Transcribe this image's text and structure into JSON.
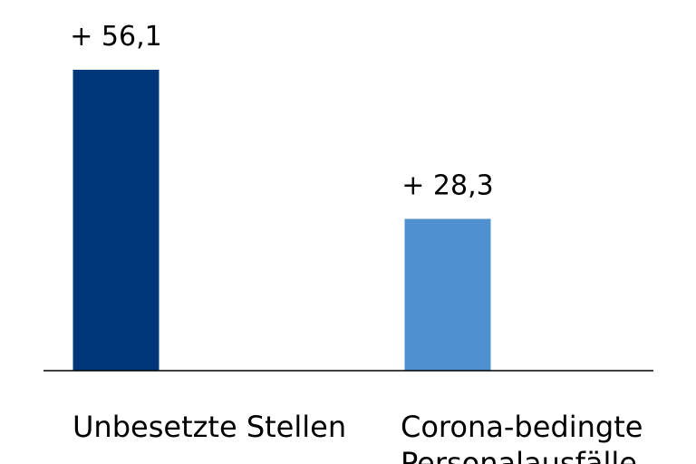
{
  "chart_data": {
    "type": "bar",
    "categories": [
      "Unbesetzte Stellen",
      "Corona-bedingte Personalausfälle"
    ],
    "category_lines": [
      [
        "Unbesetzte Stellen"
      ],
      [
        "Corona-bedingte",
        "Personalausfälle"
      ]
    ],
    "values": [
      56.1,
      28.3
    ],
    "data_labels": [
      "+ 56,1",
      "+ 28,3"
    ],
    "colors": [
      "#003778",
      "#4f91cf"
    ],
    "ylim": [
      0,
      60
    ],
    "grid": false,
    "legend": "none"
  }
}
